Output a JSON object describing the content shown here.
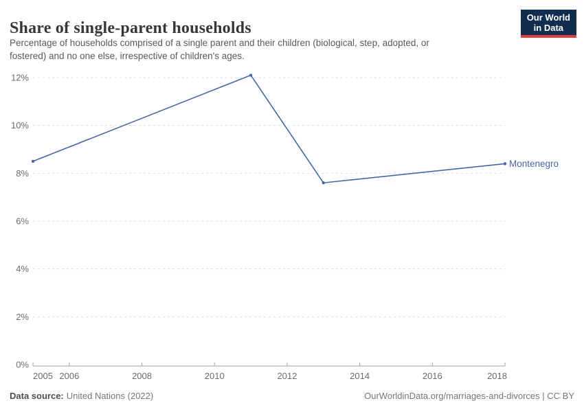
{
  "header": {
    "title": "Share of single-parent households",
    "subtitle_lines": [
      "Percentage of households comprised of a single parent and their children (biological, step, adopted, or",
      "fostered) and no one else, irrespective of children's ages."
    ],
    "logo": {
      "line1": "Our World",
      "line2": "in Data"
    }
  },
  "footer": {
    "source_label": "Data source:",
    "source_value": "United Nations (2022)",
    "link_text": "OurWorldinData.org/marriages-and-divorces | CC BY"
  },
  "colors": {
    "line": "#4666a3",
    "entity_label": "#4666a3",
    "point": "#4666a3",
    "grid": "#dcdcdc",
    "axis": "#a1a1a1",
    "tick_text": "#6b6b6b",
    "logo_bg": "#102d4f",
    "logo_accent": "#dc3e41"
  },
  "chart_data": {
    "type": "line",
    "title": "Share of single-parent households",
    "series": [
      {
        "name": "Montenegro",
        "points": [
          {
            "x": 2005,
            "y": 8.5
          },
          {
            "x": 2011,
            "y": 12.1
          },
          {
            "x": 2013,
            "y": 7.6
          },
          {
            "x": 2018,
            "y": 8.4
          }
        ]
      }
    ],
    "x_ticks": [
      2005,
      2006,
      2008,
      2010,
      2012,
      2014,
      2016,
      2018
    ],
    "y_ticks": [
      0,
      2,
      4,
      6,
      8,
      10,
      12
    ],
    "y_tick_format": "{}%",
    "xlim": [
      2005,
      2018
    ],
    "ylim": [
      0,
      12
    ],
    "grid": "dashed-horizontal",
    "legend": "inline-end-label"
  }
}
